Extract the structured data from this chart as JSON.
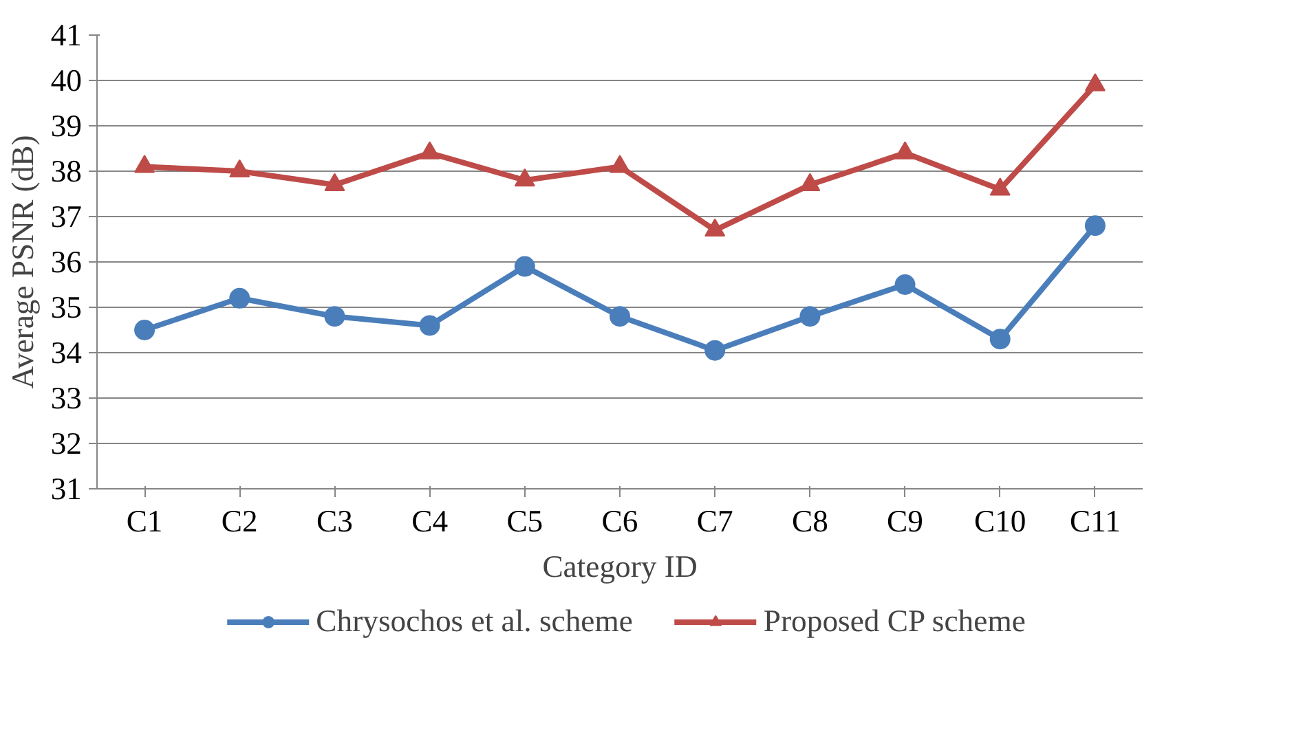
{
  "chart_data": {
    "type": "line",
    "xlabel": "Category ID",
    "ylabel": "Average PSNR (dB)",
    "categories": [
      "C1",
      "C2",
      "C3",
      "C4",
      "C5",
      "C6",
      "C7",
      "C8",
      "C9",
      "C10",
      "C11"
    ],
    "series": [
      {
        "name": "Chrysochos et al. scheme",
        "color": "#4a7ebb",
        "marker": "circle",
        "values": [
          34.5,
          35.2,
          34.8,
          34.6,
          35.9,
          34.8,
          34.05,
          34.8,
          35.5,
          34.3,
          36.8
        ]
      },
      {
        "name": "Proposed CP scheme",
        "color": "#be4b48",
        "marker": "triangle",
        "values": [
          38.1,
          38.0,
          37.7,
          38.4,
          37.8,
          38.1,
          36.7,
          37.7,
          38.4,
          37.6,
          39.9
        ]
      }
    ],
    "ylim": [
      31,
      41
    ],
    "yticks": [
      31,
      32,
      33,
      34,
      35,
      36,
      37,
      38,
      39,
      40,
      41
    ],
    "grid": "y",
    "legend": "bottom",
    "line_style": "solid"
  }
}
